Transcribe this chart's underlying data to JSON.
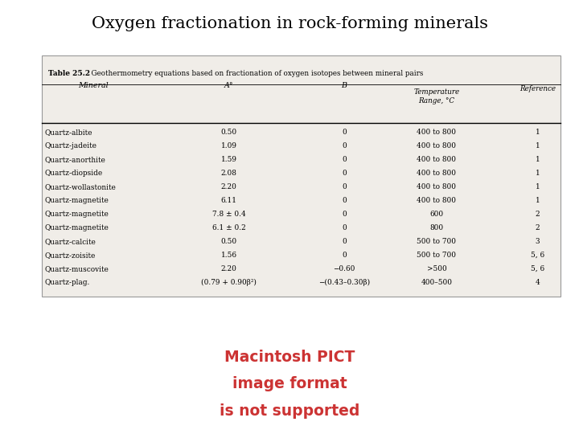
{
  "title": "Oxygen fractionation in rock-forming minerals",
  "table_title_bold": "Table 25.2",
  "table_title_rest": "  Geothermometry equations based on fractionation of oxygen isotopes between mineral pairs",
  "rows": [
    [
      "Quartz-albite",
      "0.50",
      "0",
      "400 to 800",
      "1"
    ],
    [
      "Quartz-jadeite",
      "1.09",
      "0",
      "400 to 800",
      "1"
    ],
    [
      "Quartz-anorthite",
      "1.59",
      "0",
      "400 to 800",
      "1"
    ],
    [
      "Quartz-diopside",
      "2.08",
      "0",
      "400 to 800",
      "1"
    ],
    [
      "Quartz-wollastonite",
      "2.20",
      "0",
      "400 to 800",
      "1"
    ],
    [
      "Quartz-magnetite",
      "6.11",
      "0",
      "400 to 800",
      "1"
    ],
    [
      "Quartz-magnetite",
      "7.8 ± 0.4",
      "0",
      "600",
      "2"
    ],
    [
      "Quartz-magnetite",
      "6.1 ± 0.2",
      "0",
      "800",
      "2"
    ],
    [
      "Quartz-calcite",
      "0.50",
      "0",
      "500 to 700",
      "3"
    ],
    [
      "Quartz-zoisite",
      "1.56",
      "0",
      "500 to 700",
      "5, 6"
    ],
    [
      "Quartz-muscovite",
      "2.20",
      "−0.60",
      ">500",
      "5, 6"
    ],
    [
      "Quartz-plag.",
      "(0.79 + 0.90β²)",
      "−(0.43–0.30β)",
      "400–500",
      "4"
    ]
  ],
  "bg_color": "#ffffff",
  "table_bg": "#f0ede8",
  "pict_text_line1": "Macintosh PICT",
  "pict_text_line2": "image format",
  "pict_text_line3": "is not supported",
  "pict_text_color": "#cc3333"
}
